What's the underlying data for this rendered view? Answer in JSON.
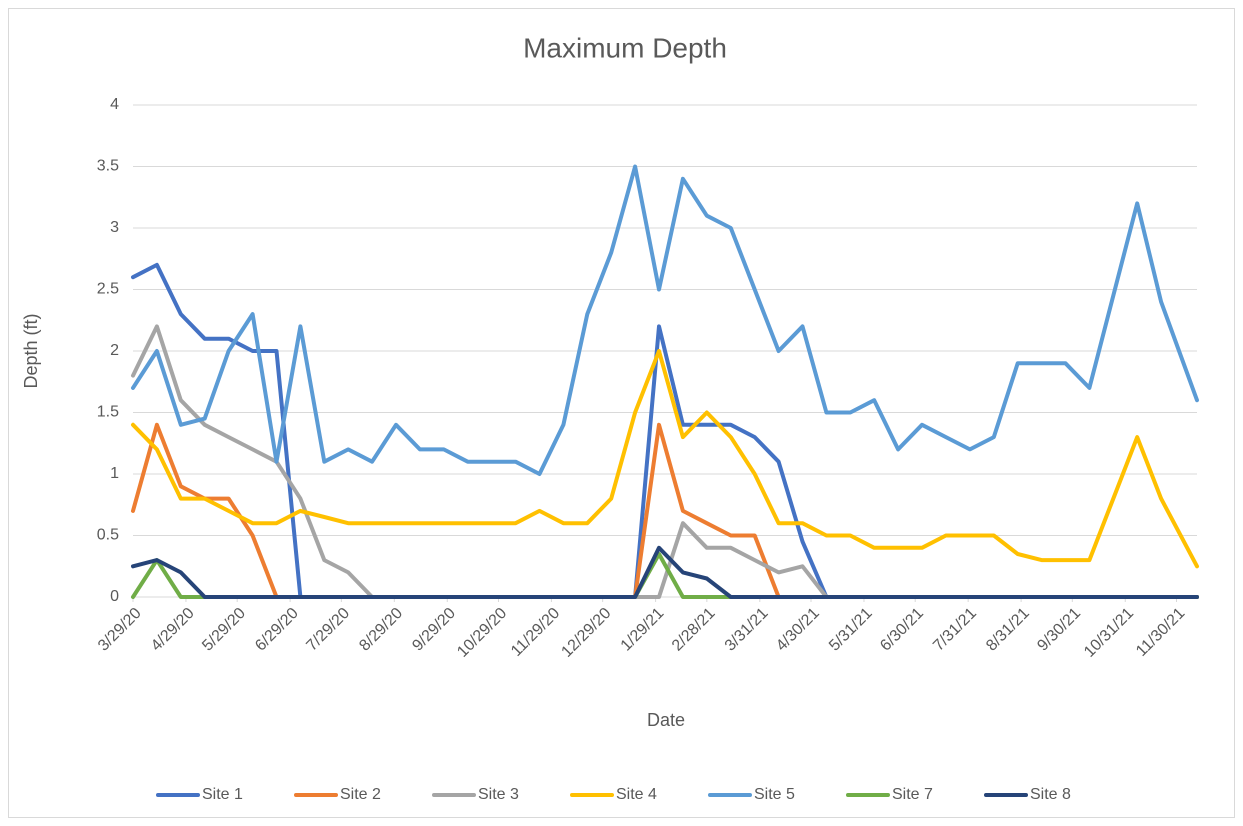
{
  "chart_data": {
    "type": "line",
    "title": "Maximum Depth",
    "x_label": "Date",
    "y_label": "Depth (ft)",
    "x": [
      "2020-03-29",
      "2020-04-12",
      "2020-04-26",
      "2020-05-10",
      "2020-05-24",
      "2020-06-07",
      "2020-06-21",
      "2020-07-05",
      "2020-07-19",
      "2020-08-02",
      "2020-08-16",
      "2020-08-30",
      "2020-09-13",
      "2020-09-27",
      "2020-10-11",
      "2020-10-25",
      "2020-11-08",
      "2020-11-22",
      "2020-12-06",
      "2020-12-20",
      "2021-01-03",
      "2021-01-17",
      "2021-01-31",
      "2021-02-14",
      "2021-02-28",
      "2021-03-14",
      "2021-03-28",
      "2021-04-11",
      "2021-04-25",
      "2021-05-09",
      "2021-05-23",
      "2021-06-06",
      "2021-06-20",
      "2021-07-04",
      "2021-07-18",
      "2021-08-01",
      "2021-08-15",
      "2021-08-29",
      "2021-09-12",
      "2021-09-26",
      "2021-10-10",
      "2021-10-24",
      "2021-11-07",
      "2021-11-21",
      "2021-12-12"
    ],
    "xlim": [
      "2020-03-29",
      "2021-12-12"
    ],
    "xticks": [
      {
        "value": "2020-03-29",
        "label": "3/29/20"
      },
      {
        "value": "2020-04-29",
        "label": "4/29/20"
      },
      {
        "value": "2020-05-29",
        "label": "5/29/20"
      },
      {
        "value": "2020-06-29",
        "label": "6/29/20"
      },
      {
        "value": "2020-07-29",
        "label": "7/29/20"
      },
      {
        "value": "2020-08-29",
        "label": "8/29/20"
      },
      {
        "value": "2020-09-29",
        "label": "9/29/20"
      },
      {
        "value": "2020-10-29",
        "label": "10/29/20"
      },
      {
        "value": "2020-11-29",
        "label": "11/29/20"
      },
      {
        "value": "2020-12-29",
        "label": "12/29/20"
      },
      {
        "value": "2021-01-29",
        "label": "1/29/21"
      },
      {
        "value": "2021-02-28",
        "label": "2/28/21"
      },
      {
        "value": "2021-03-31",
        "label": "3/31/21"
      },
      {
        "value": "2021-04-30",
        "label": "4/30/21"
      },
      {
        "value": "2021-05-31",
        "label": "5/31/21"
      },
      {
        "value": "2021-06-30",
        "label": "6/30/21"
      },
      {
        "value": "2021-07-31",
        "label": "7/31/21"
      },
      {
        "value": "2021-08-31",
        "label": "8/31/21"
      },
      {
        "value": "2021-09-30",
        "label": "9/30/21"
      },
      {
        "value": "2021-10-31",
        "label": "10/31/21"
      },
      {
        "value": "2021-11-30",
        "label": "11/30/21"
      }
    ],
    "ylim": [
      0,
      4
    ],
    "yticks": [
      0,
      0.5,
      1,
      1.5,
      2,
      2.5,
      3,
      3.5,
      4
    ],
    "grid": true,
    "legend": "bottom",
    "series": [
      {
        "name": "Site 1",
        "color": "#4472c4",
        "values": [
          2.6,
          2.7,
          2.3,
          2.1,
          2.1,
          2.0,
          2.0,
          0,
          0,
          0,
          0,
          0,
          0,
          0,
          0,
          0,
          0,
          0,
          0,
          0,
          0,
          0,
          2.2,
          1.4,
          1.4,
          1.4,
          1.3,
          1.1,
          0.45,
          0,
          0,
          0,
          0,
          0,
          0,
          0,
          0,
          0,
          0,
          0,
          0,
          0,
          0,
          0,
          0
        ]
      },
      {
        "name": "Site 2",
        "color": "#ed7d31",
        "values": [
          0.7,
          1.4,
          0.9,
          0.8,
          0.8,
          0.5,
          0,
          0,
          0,
          0,
          0,
          0,
          0,
          0,
          0,
          0,
          0,
          0,
          0,
          0,
          0,
          0,
          1.4,
          0.7,
          0.6,
          0.5,
          0.5,
          0,
          0,
          0,
          0,
          0,
          0,
          0,
          0,
          0,
          0,
          0,
          0,
          0,
          0,
          0,
          0,
          0,
          0
        ]
      },
      {
        "name": "Site 3",
        "color": "#a5a5a5",
        "values": [
          1.8,
          2.2,
          1.6,
          1.4,
          1.3,
          1.2,
          1.1,
          0.8,
          0.3,
          0.2,
          0,
          0,
          0,
          0,
          0,
          0,
          0,
          0,
          0,
          0,
          0,
          0,
          0,
          0.6,
          0.4,
          0.4,
          0.3,
          0.2,
          0.25,
          0,
          0,
          0,
          0,
          0,
          0,
          0,
          0,
          0,
          0,
          0,
          0,
          0,
          0,
          0,
          0
        ]
      },
      {
        "name": "Site 4",
        "color": "#ffc000",
        "values": [
          1.4,
          1.2,
          0.8,
          0.8,
          0.7,
          0.6,
          0.6,
          0.7,
          0.65,
          0.6,
          0.6,
          0.6,
          0.6,
          0.6,
          0.6,
          0.6,
          0.6,
          0.7,
          0.6,
          0.6,
          0.8,
          1.5,
          2.0,
          1.3,
          1.5,
          1.3,
          1.0,
          0.6,
          0.6,
          0.5,
          0.5,
          0.4,
          0.4,
          0.4,
          0.5,
          0.5,
          0.5,
          0.35,
          0.3,
          0.3,
          0.3,
          0.8,
          1.3,
          0.8,
          0.25
        ]
      },
      {
        "name": "Site 5",
        "color": "#5b9bd5",
        "values": [
          1.7,
          2.0,
          1.4,
          1.45,
          2.0,
          2.3,
          1.1,
          2.2,
          1.1,
          1.2,
          1.1,
          1.4,
          1.2,
          1.2,
          1.1,
          1.1,
          1.1,
          1.0,
          1.4,
          2.3,
          2.8,
          3.5,
          2.5,
          3.4,
          3.1,
          3.0,
          2.5,
          2.0,
          2.2,
          1.5,
          1.5,
          1.6,
          1.2,
          1.4,
          1.3,
          1.2,
          1.3,
          1.9,
          1.9,
          1.9,
          1.7,
          2.45,
          3.2,
          2.4,
          1.6
        ]
      },
      {
        "name": "Site 7",
        "color": "#70ad47",
        "values": [
          0,
          0.3,
          0,
          0,
          0,
          0,
          0,
          0,
          0,
          0,
          0,
          0,
          0,
          0,
          0,
          0,
          0,
          0,
          0,
          0,
          0,
          0,
          0.35,
          0,
          0,
          0,
          0,
          0,
          0,
          0,
          0,
          0,
          0,
          0,
          0,
          0,
          0,
          0,
          0,
          0,
          0,
          0,
          0,
          0,
          0
        ]
      },
      {
        "name": "Site 8",
        "color": "#264478",
        "values": [
          0.25,
          0.3,
          0.2,
          0,
          0,
          0,
          0,
          0,
          0,
          0,
          0,
          0,
          0,
          0,
          0,
          0,
          0,
          0,
          0,
          0,
          0,
          0,
          0.4,
          0.2,
          0.15,
          0,
          0,
          0,
          0,
          0,
          0,
          0,
          0,
          0,
          0,
          0,
          0,
          0,
          0,
          0,
          0,
          0,
          0,
          0,
          0
        ]
      }
    ]
  }
}
